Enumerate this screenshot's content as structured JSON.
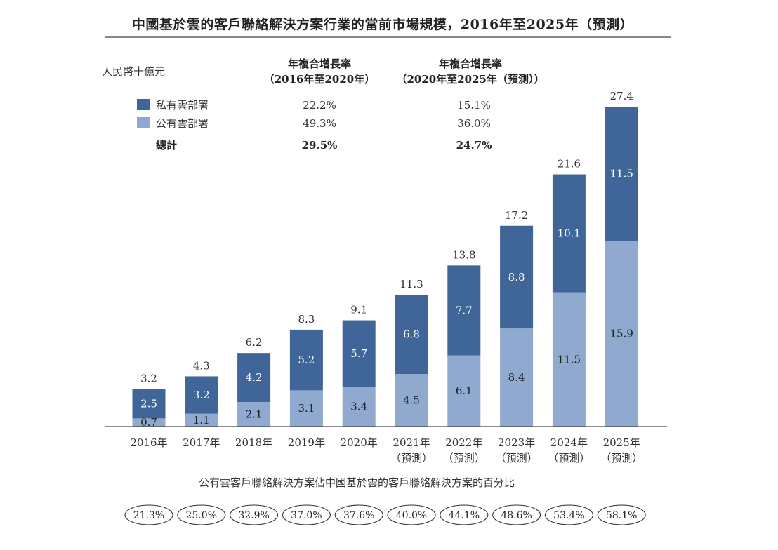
{
  "chart_data": {
    "type": "bar",
    "stacked": true,
    "title": "中國基於雲的客戶聯絡解決方案行業的當前市場規模，2016年至2025年（預測）",
    "ylabel": "人民幣十億元",
    "categories": [
      "2016年",
      "2017年",
      "2018年",
      "2019年",
      "2020年",
      "2021年",
      "2022年",
      "2023年",
      "2024年",
      "2025年"
    ],
    "category_notes": [
      "",
      "",
      "",
      "",
      "",
      "（預測）",
      "（預測）",
      "（預測）",
      "（預測）",
      "（預測）"
    ],
    "series": [
      {
        "name": "公有雲部署",
        "color": "#8fa9cf",
        "values": [
          0.7,
          1.1,
          2.1,
          3.1,
          3.4,
          4.5,
          6.1,
          8.4,
          11.5,
          15.9
        ]
      },
      {
        "name": "私有雲部署",
        "color": "#3f6599",
        "values": [
          2.5,
          3.2,
          4.2,
          5.2,
          5.7,
          6.8,
          7.7,
          8.8,
          10.1,
          11.5
        ]
      }
    ],
    "totals": [
      3.2,
      4.3,
      6.2,
      8.3,
      9.1,
      11.3,
      13.8,
      17.2,
      21.6,
      27.4
    ],
    "ylim": [
      0,
      30
    ],
    "cagr_table": {
      "headers": [
        {
          "line1": "年複合增長率",
          "line2": "（2016年至2020年）"
        },
        {
          "line1": "年複合增長率",
          "line2": "（2020年至2025年（預測））"
        }
      ],
      "rows": [
        {
          "label": "私有雲部署",
          "values": [
            "22.2%",
            "15.1%"
          ]
        },
        {
          "label": "公有雲部署",
          "values": [
            "49.3%",
            "36.0%"
          ]
        },
        {
          "label": "總計",
          "values": [
            "29.5%",
            "24.7%"
          ]
        }
      ]
    },
    "share_caption": "公有雲客戶聯絡解決方案佔中國基於雲的客戶聯絡解決方案的百分比",
    "share_values": [
      "21.3%",
      "25.0%",
      "32.9%",
      "37.0%",
      "37.6%",
      "40.0%",
      "44.1%",
      "48.6%",
      "53.4%",
      "58.1%"
    ]
  }
}
